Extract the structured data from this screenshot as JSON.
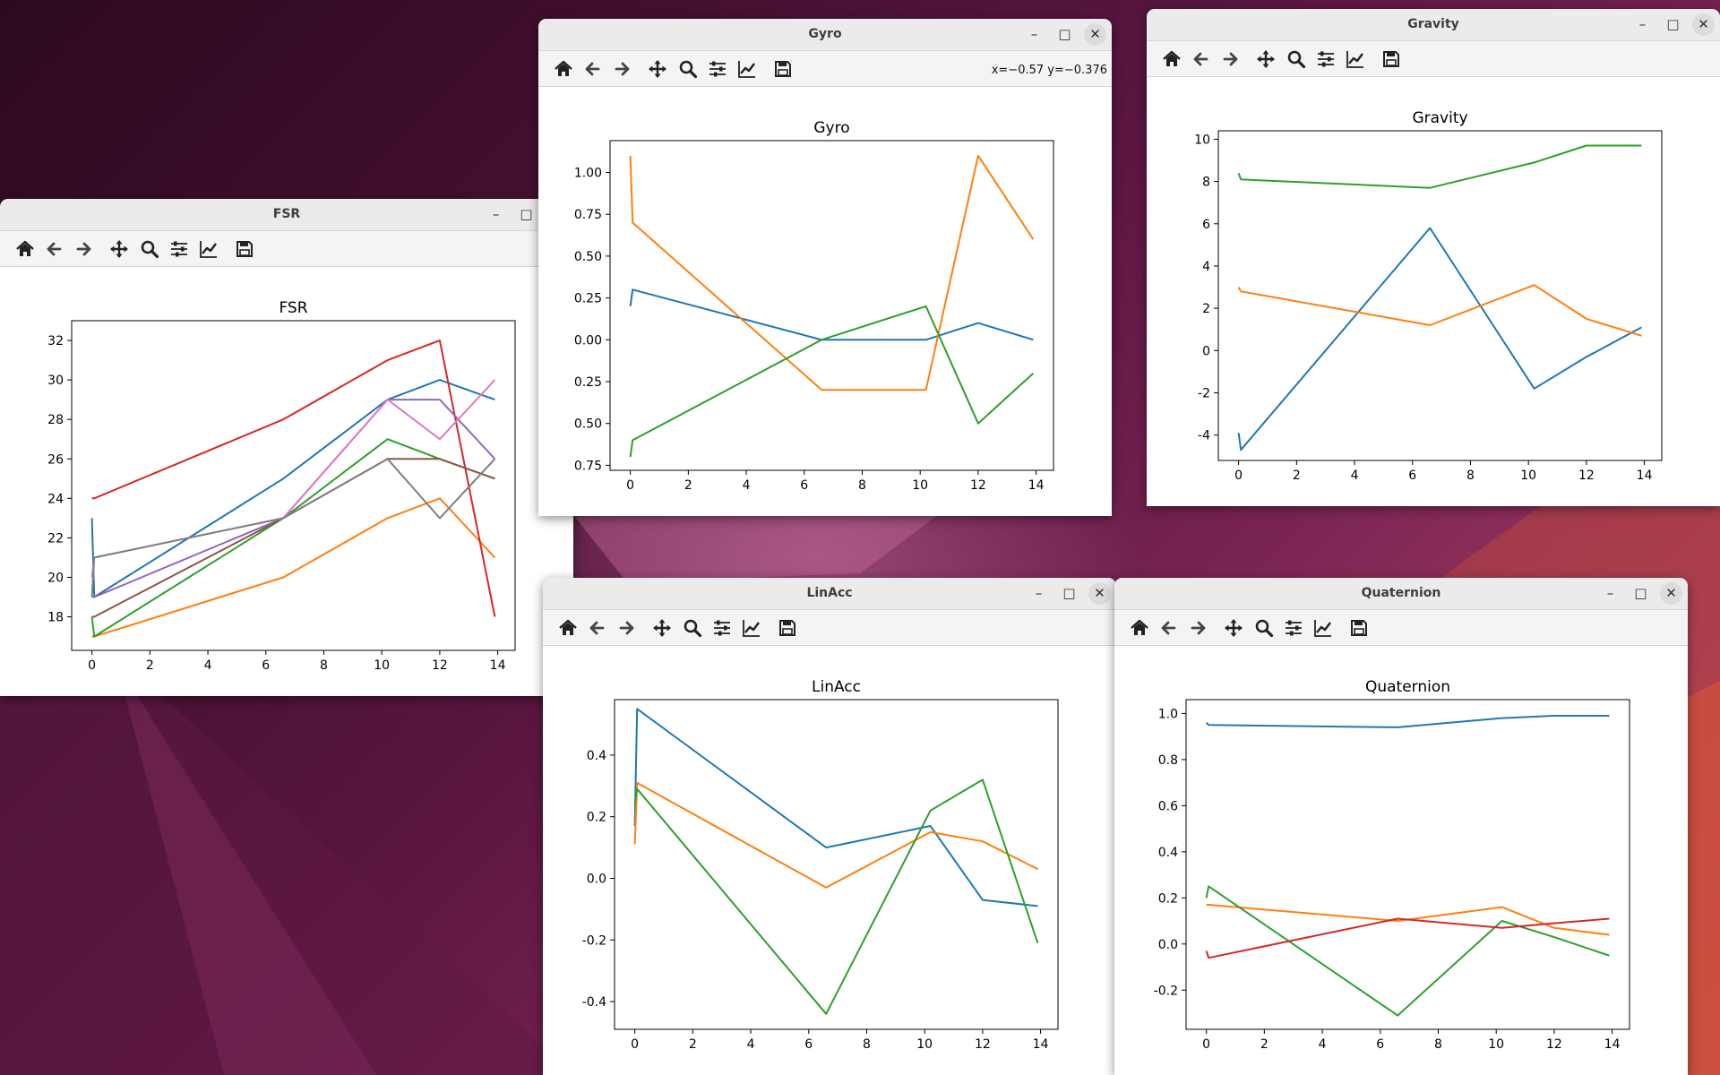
{
  "toolbar_icons": [
    "home-icon",
    "back-arrow-icon",
    "forward-arrow-icon",
    "pan-move-icon",
    "zoom-magnifier-icon",
    "configure-subplots-icon",
    "edit-axis-icon",
    "save-floppy-icon"
  ],
  "colors": {
    "series": [
      "#1f77b4",
      "#ff7f0e",
      "#2ca02c",
      "#d62728",
      "#9467bd",
      "#8c564b",
      "#e377c2",
      "#7f7f7f"
    ]
  },
  "windows": {
    "fsr": {
      "title": "FSR",
      "chart_title": "FSR",
      "coords": ""
    },
    "gyro": {
      "title": "Gyro",
      "chart_title": "Gyro",
      "coords": "x=−0.57 y=−0.376"
    },
    "gravity": {
      "title": "Gravity",
      "chart_title": "Gravity",
      "coords": ""
    },
    "linacc": {
      "title": "LinAcc",
      "chart_title": "LinAcc",
      "coords": ""
    },
    "quaternion": {
      "title": "Quaternion",
      "chart_title": "Quaternion",
      "coords": ""
    }
  },
  "chart_data": [
    {
      "id": "fsr",
      "type": "line",
      "title": "FSR",
      "xlim": [
        -0.7,
        14.6
      ],
      "ylim": [
        16.3,
        33.0
      ],
      "xticks": [
        0,
        2,
        4,
        6,
        8,
        10,
        12,
        14
      ],
      "yticks": [
        18,
        20,
        22,
        24,
        26,
        28,
        30,
        32
      ],
      "x": [
        0,
        0.08,
        6.6,
        10.2,
        12,
        13.9
      ],
      "series": [
        {
          "values": [
            23,
            19,
            25,
            29,
            30,
            29
          ]
        },
        {
          "values": [
            17,
            17,
            20,
            23,
            24,
            21
          ]
        },
        {
          "values": [
            18,
            17,
            23,
            27,
            26,
            25
          ]
        },
        {
          "values": [
            24,
            24,
            28,
            31,
            32,
            18
          ]
        },
        {
          "values": [
            19,
            19,
            23,
            29,
            29,
            26
          ]
        },
        {
          "values": [
            18,
            18,
            23,
            26,
            26,
            25
          ]
        },
        {
          "values": [
            20,
            21,
            23,
            29,
            27,
            30
          ]
        },
        {
          "values": [
            19,
            21,
            23,
            26,
            23,
            26
          ]
        }
      ]
    },
    {
      "id": "gyro",
      "type": "line",
      "title": "Gyro",
      "xlim": [
        -0.7,
        14.6
      ],
      "ylim": [
        -0.78,
        1.19
      ],
      "xticks": [
        0,
        2,
        4,
        6,
        8,
        10,
        12,
        14
      ],
      "yticks": [
        1.0,
        0.75,
        0.5,
        0.25,
        0.0,
        -0.25,
        -0.5,
        -0.75
      ],
      "ytick_labels": [
        "1.00",
        "0.75",
        "0.50",
        "0.25",
        "0.00",
        "0.25",
        "0.50",
        "0.75"
      ],
      "x": [
        0,
        0.08,
        6.6,
        10.2,
        12,
        13.9
      ],
      "series": [
        {
          "values": [
            0.2,
            0.3,
            0.0,
            0.0,
            0.1,
            0.0
          ]
        },
        {
          "values": [
            1.1,
            0.7,
            -0.3,
            -0.3,
            1.1,
            0.6
          ]
        },
        {
          "values": [
            -0.7,
            -0.6,
            0.0,
            0.2,
            -0.5,
            -0.2
          ]
        }
      ]
    },
    {
      "id": "gravity",
      "type": "line",
      "title": "Gravity",
      "xlim": [
        -0.7,
        14.6
      ],
      "ylim": [
        -5.2,
        10.4
      ],
      "xticks": [
        0,
        2,
        4,
        6,
        8,
        10,
        12,
        14
      ],
      "yticks": [
        10,
        8,
        6,
        4,
        2,
        0,
        -2,
        -4
      ],
      "x": [
        0,
        0.08,
        6.6,
        10.2,
        12,
        13.9
      ],
      "series": [
        {
          "values": [
            -3.9,
            -4.7,
            5.8,
            -1.8,
            -0.3,
            1.1
          ]
        },
        {
          "values": [
            3.0,
            2.8,
            1.2,
            3.1,
            1.5,
            0.7
          ]
        },
        {
          "values": [
            8.4,
            8.1,
            7.7,
            8.9,
            9.7,
            9.7
          ]
        }
      ]
    },
    {
      "id": "linacc",
      "type": "line",
      "title": "LinAcc",
      "xlim": [
        -0.7,
        14.6
      ],
      "ylim": [
        -0.49,
        0.58
      ],
      "xticks": [
        0,
        2,
        4,
        6,
        8,
        10,
        12,
        14
      ],
      "yticks": [
        0.4,
        0.2,
        0.0,
        -0.2,
        -0.4
      ],
      "x": [
        0,
        0.08,
        6.6,
        10.2,
        12,
        13.9
      ],
      "series": [
        {
          "values": [
            0.17,
            0.55,
            0.1,
            0.17,
            -0.07,
            -0.09
          ]
        },
        {
          "values": [
            0.11,
            0.31,
            -0.03,
            0.15,
            0.12,
            0.03
          ]
        },
        {
          "values": [
            0.24,
            0.29,
            -0.44,
            0.22,
            0.32,
            -0.21
          ]
        }
      ]
    },
    {
      "id": "quaternion",
      "type": "line",
      "title": "Quaternion",
      "xlim": [
        -0.7,
        14.6
      ],
      "ylim": [
        -0.37,
        1.06
      ],
      "xticks": [
        0,
        2,
        4,
        6,
        8,
        10,
        12,
        14
      ],
      "yticks": [
        1.0,
        0.8,
        0.6,
        0.4,
        0.2,
        0.0,
        -0.2
      ],
      "x": [
        0,
        0.08,
        6.6,
        10.2,
        12,
        13.9
      ],
      "series": [
        {
          "values": [
            0.96,
            0.95,
            0.94,
            0.98,
            0.99,
            0.99
          ]
        },
        {
          "values": [
            0.17,
            0.17,
            0.1,
            0.16,
            0.07,
            0.04
          ]
        },
        {
          "values": [
            0.2,
            0.25,
            -0.31,
            0.1,
            0.03,
            -0.05
          ]
        },
        {
          "values": [
            -0.03,
            -0.06,
            0.11,
            0.07,
            0.09,
            0.11
          ]
        }
      ]
    }
  ]
}
